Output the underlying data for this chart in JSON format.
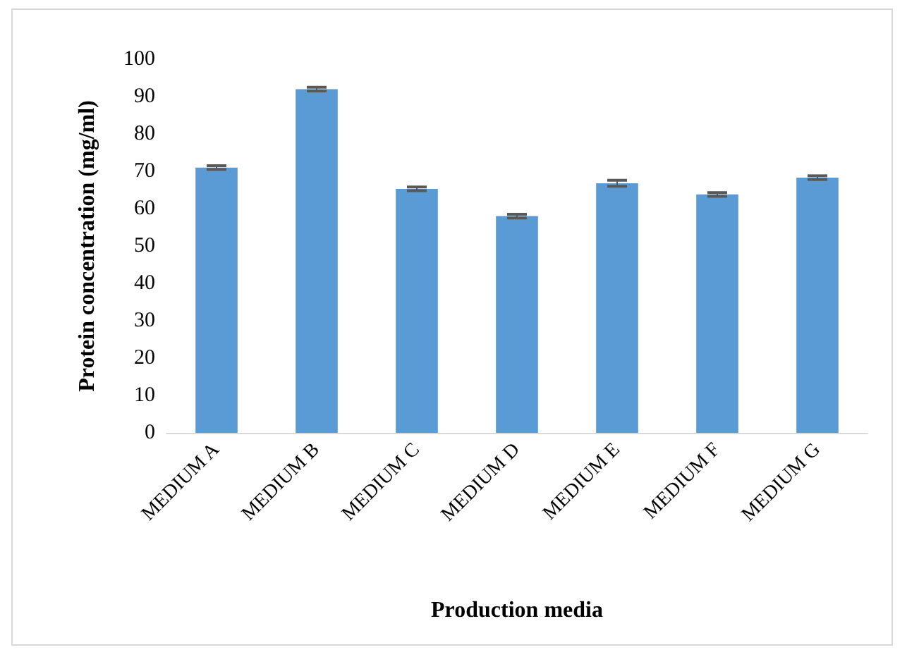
{
  "chart_data": {
    "type": "bar",
    "xlabel": "Production media",
    "ylabel": "Protein concentration (mg/ml)",
    "categories": [
      "MEDIUM A",
      "MEDIUM B",
      "MEDIUM C",
      "MEDIUM D",
      "MEDIUM E",
      "MEDIUM F",
      "MEDIUM G"
    ],
    "values": [
      71,
      92,
      65.3,
      58,
      66.8,
      63.8,
      68.3
    ],
    "errors": [
      0.5,
      0.5,
      0.5,
      0.5,
      0.8,
      0.5,
      0.5
    ],
    "color": "#5b9bd5",
    "ylim": [
      0,
      100
    ],
    "yticks": [
      0,
      10,
      20,
      30,
      40,
      50,
      60,
      70,
      80,
      90,
      100
    ],
    "grid": false
  }
}
